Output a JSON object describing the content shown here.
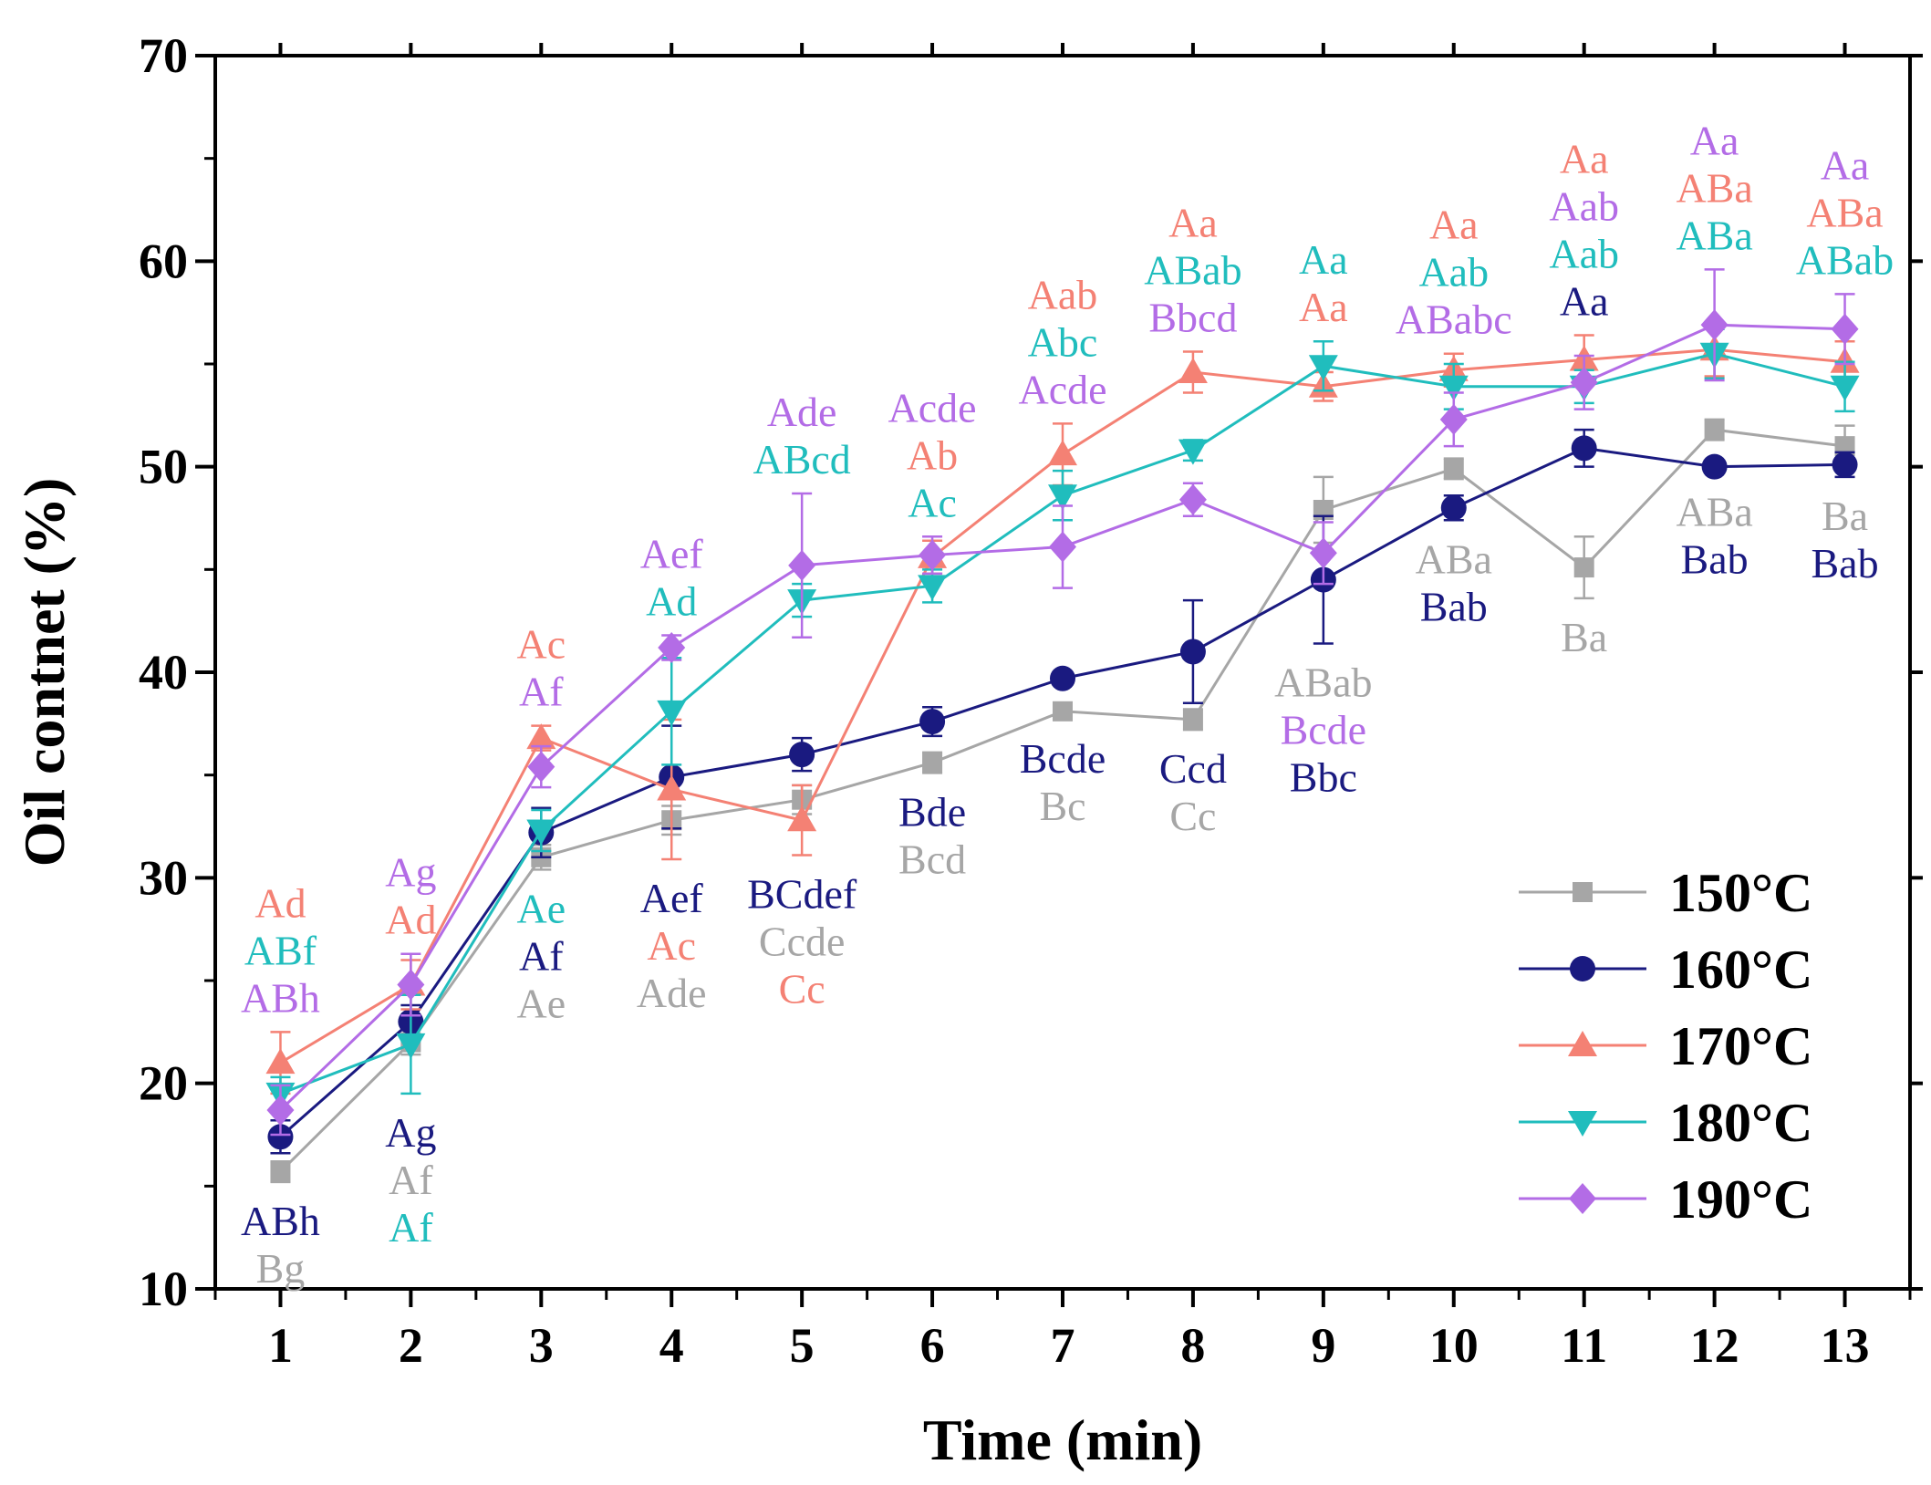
{
  "chart_data": {
    "type": "line",
    "title": "",
    "xlabel": "Time (min)",
    "ylabel": "Oil contnet (%)",
    "x": [
      1,
      2,
      3,
      4,
      5,
      6,
      7,
      8,
      9,
      10,
      11,
      12,
      13
    ],
    "x_tick_labels": [
      "1",
      "2",
      "3",
      "4",
      "5",
      "6",
      "7",
      "8",
      "9",
      "10",
      "11",
      "12",
      "13"
    ],
    "xlim": [
      0.5,
      13.5
    ],
    "ylim": [
      10,
      70
    ],
    "y_ticks": [
      10,
      20,
      30,
      40,
      50,
      60,
      70
    ],
    "y_tick_labels": [
      "10",
      "20",
      "30",
      "40",
      "50",
      "60",
      "70"
    ],
    "grid": false,
    "legend_position": "bottom-right",
    "series": [
      {
        "name": "150°C",
        "color": "#a6a6a6",
        "marker": "square",
        "values": [
          15.7,
          22.0,
          31.0,
          32.8,
          33.8,
          35.6,
          38.1,
          37.7,
          47.9,
          49.9,
          45.1,
          51.8,
          51.0
        ],
        "errors": [
          0.5,
          0.6,
          0.6,
          0.7,
          0.7,
          0.5,
          0.4,
          0.5,
          1.6,
          0.5,
          1.5,
          0.5,
          1.0
        ],
        "letters": [
          "Bg",
          "Af",
          "Ae",
          "Ade",
          "Ccde",
          "Bcd",
          "Bc",
          "Cc",
          "ABab",
          "ABa",
          "Ba",
          "ABa",
          "Ba"
        ]
      },
      {
        "name": "160°C",
        "color": "#1a1a80",
        "marker": "circle",
        "values": [
          17.4,
          23.0,
          32.2,
          34.9,
          36.0,
          37.6,
          39.7,
          41.0,
          44.5,
          48.0,
          50.9,
          50.0,
          50.1
        ],
        "errors": [
          0.8,
          0.8,
          1.2,
          2.5,
          0.8,
          0.7,
          0.3,
          2.5,
          3.1,
          0.6,
          0.9,
          0.3,
          0.6
        ],
        "letters": [
          "ABh",
          "Ag",
          "Af",
          "Aef",
          "BCdef",
          "Bde",
          "Bcde",
          "Ccd",
          "Bbc",
          "Bab",
          "Aa",
          "Bab",
          "Bab"
        ]
      },
      {
        "name": "170°C",
        "color": "#f48174",
        "marker": "triangle-up",
        "values": [
          21.0,
          24.8,
          36.8,
          34.3,
          32.8,
          45.6,
          50.6,
          54.6,
          53.9,
          54.7,
          55.2,
          55.7,
          55.1
        ],
        "errors": [
          1.5,
          1.2,
          0.6,
          3.4,
          1.7,
          0.8,
          1.5,
          1.0,
          0.7,
          0.8,
          1.2,
          1.3,
          1.0
        ],
        "letters": [
          "Ad",
          "Ad",
          "Ac",
          "Ac",
          "Cc",
          "Ab",
          "Aab",
          "Aa",
          "Aa",
          "Aa",
          "Aa",
          "ABa",
          "ABa"
        ]
      },
      {
        "name": "180°C",
        "color": "#20bdbd",
        "marker": "triangle-down",
        "values": [
          19.5,
          21.9,
          32.3,
          38.1,
          43.5,
          44.2,
          48.6,
          50.8,
          54.9,
          53.9,
          53.9,
          55.5,
          53.9
        ],
        "errors": [
          0.8,
          2.4,
          1.0,
          2.6,
          0.8,
          0.8,
          1.2,
          0.5,
          1.2,
          1.1,
          0.8,
          1.2,
          1.2
        ],
        "letters": [
          "ABf",
          "Af",
          "Ae",
          "Ad",
          "ABcd",
          "Ac",
          "Abc",
          "ABab",
          "Aa",
          "Aab",
          "Aab",
          "ABa",
          "ABab"
        ]
      },
      {
        "name": "190°C",
        "color": "#b36ce6",
        "marker": "diamond",
        "values": [
          18.7,
          24.8,
          35.4,
          41.2,
          45.2,
          45.7,
          46.1,
          48.4,
          45.8,
          52.3,
          54.1,
          56.9,
          56.7
        ],
        "errors": [
          1.2,
          1.5,
          1.0,
          0.6,
          3.5,
          0.9,
          2.0,
          0.8,
          1.5,
          1.3,
          1.3,
          2.7,
          1.7
        ],
        "letters": [
          "ABh",
          "Ag",
          "Af",
          "Aef",
          "Ade",
          "Acde",
          "Acde",
          "Bbcd",
          "Bcde",
          "ABabc",
          "Aab",
          "Aa",
          "Aa"
        ]
      }
    ]
  }
}
